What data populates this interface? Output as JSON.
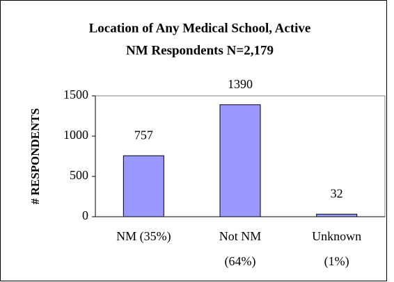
{
  "chart_data": {
    "type": "bar",
    "title": [
      "Location of Any Medical School, Active",
      "NM Respondents N=2,179"
    ],
    "y_label": "# RESPONDENTS",
    "categories": [
      [
        "NM (35%)"
      ],
      [
        "Not NM",
        "(64%)"
      ],
      [
        "Unknown",
        "(1%)"
      ]
    ],
    "values": [
      757,
      1390,
      32
    ],
    "color": "#9999ff",
    "ylim": [
      0,
      1500
    ],
    "yticks": [
      0,
      500,
      1000,
      1500
    ],
    "grid": false
  }
}
